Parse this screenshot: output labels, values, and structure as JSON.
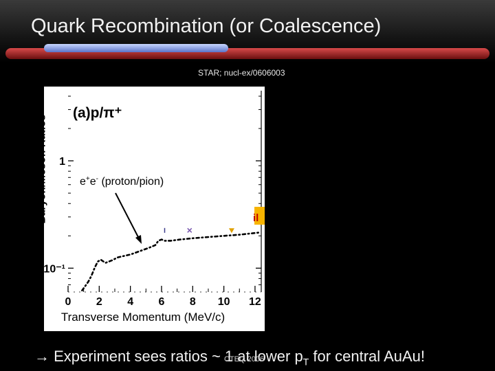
{
  "slide": {
    "title": "Quark Recombination (or Coalescence)",
    "source": "STAR; nucl-ex/0606003",
    "footer_arrow": "→",
    "footer_main": "Experiment sees ratios ~ 1 at lower p",
    "footer_sub": "T",
    "footer_tail": " for central AuAu!",
    "conference": "CTEQ 2006"
  },
  "chart_data": {
    "type": "line",
    "title": "",
    "panel_label": "(a)p/π⁺",
    "xlabel": "Transverse Momentum (MeV/c)",
    "ylabel": "Baryon/Meson Ratios",
    "xlim": [
      0,
      12.4
    ],
    "ylim": [
      0.06,
      4.5
    ],
    "yscale": "log",
    "xticks": [
      0,
      2,
      4,
      6,
      8,
      10,
      12
    ],
    "xtick_labels": [
      "0",
      "2",
      "4",
      "6",
      "8",
      "10",
      "12"
    ],
    "yticks": [
      0.1,
      1
    ],
    "ytick_labels": [
      "10⁻¹",
      "1"
    ],
    "series": [
      {
        "name": "e+e- (proton/pion)",
        "style": "dashdot",
        "color": "#000000",
        "x": [
          0.9,
          1.1,
          1.3,
          1.5,
          1.7,
          1.9,
          2.1,
          2.4,
          2.8,
          3.2,
          3.6,
          4.0,
          4.6,
          5.2,
          5.6,
          5.8,
          6.0,
          6.2,
          6.6,
          7.2,
          8.0,
          9.0,
          10.0,
          11.0,
          12.3
        ],
        "y": [
          0.062,
          0.068,
          0.075,
          0.085,
          0.1,
          0.115,
          0.12,
          0.112,
          0.118,
          0.126,
          0.13,
          0.134,
          0.144,
          0.155,
          0.164,
          0.18,
          0.185,
          0.18,
          0.18,
          0.185,
          0.19,
          0.195,
          0.2,
          0.205,
          0.215
        ]
      }
    ],
    "annotations": [
      {
        "text_main": "e",
        "sup1": "+",
        "text_mid": "e",
        "sup2": "-",
        "text_tail": " (proton/pion)"
      }
    ],
    "markers": [
      {
        "x": 6.2,
        "y": 0.22,
        "shape": "small-tick",
        "color": "#3a3a8a"
      },
      {
        "x": 7.8,
        "y": 0.225,
        "shape": "x",
        "color": "#7a5ab0"
      },
      {
        "x": 10.5,
        "y": 0.225,
        "shape": "triangle-down",
        "color": "#e0a000"
      }
    ],
    "colors": {
      "text": "#000000",
      "clipped_legend_fill": "#f7b400",
      "clipped_legend_text": "#c00000"
    },
    "grid": false,
    "legend_position": "clipped-right"
  }
}
